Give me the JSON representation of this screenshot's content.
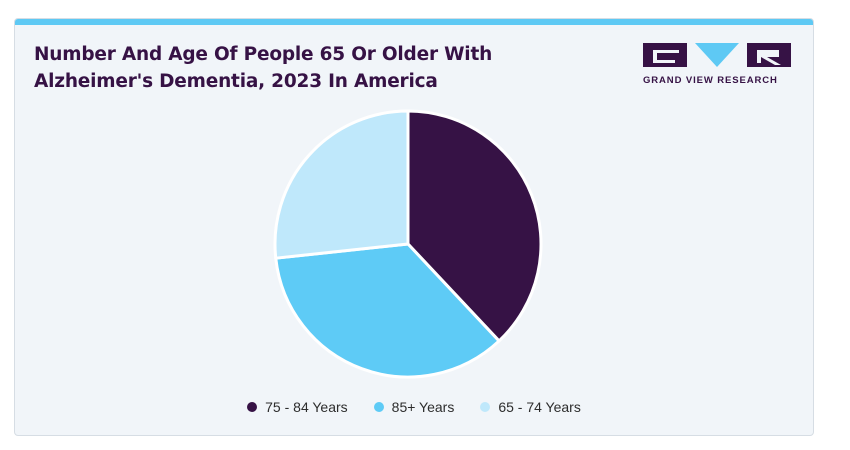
{
  "title": "Number And Age Of People 65 Or Older With Alzheimer's Dementia, 2023 In America",
  "logo": {
    "text": "GRAND VIEW RESEARCH",
    "icon": "gvr-logo-icon",
    "primary_color": "#361245",
    "accent_color": "#5ec9f4"
  },
  "colors": {
    "topbar": "#5ec9f4",
    "card_bg": "#f1f5f9"
  },
  "chart_data": {
    "type": "pie",
    "title": "Number And Age Of People 65 Or Older With Alzheimer's Dementia, 2023 In America",
    "start_angle_deg": 0,
    "legend_position": "bottom",
    "slices": [
      {
        "label": "75 - 84 Years",
        "value": 38.0,
        "color": "#361245"
      },
      {
        "label": "85+ Years",
        "value": 35.3,
        "color": "#5ecbf6"
      },
      {
        "label": "65 - 74 Years",
        "value": 26.7,
        "color": "#bfe8fb"
      }
    ]
  }
}
